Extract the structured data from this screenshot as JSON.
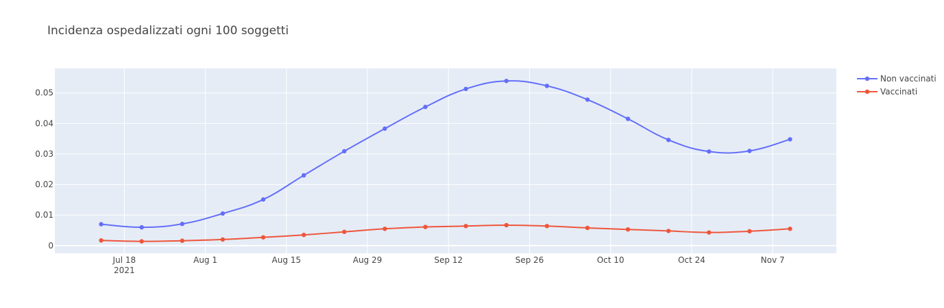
{
  "chart_data": {
    "type": "line",
    "title": "Incidenza ospedalizzati ogni 100 soggetti",
    "xlabel": "",
    "ylabel": "",
    "x": [
      "2021-07-14",
      "2021-07-21",
      "2021-07-28",
      "2021-08-04",
      "2021-08-11",
      "2021-08-18",
      "2021-08-25",
      "2021-09-01",
      "2021-09-08",
      "2021-09-15",
      "2021-09-22",
      "2021-09-29",
      "2021-10-06",
      "2021-10-13",
      "2021-10-20",
      "2021-10-27",
      "2021-11-03",
      "2021-11-10"
    ],
    "x_ticks": [
      "2021-07-18",
      "2021-08-01",
      "2021-08-15",
      "2021-08-29",
      "2021-09-12",
      "2021-09-26",
      "2021-10-10",
      "2021-10-24",
      "2021-11-07"
    ],
    "x_tick_labels": [
      "Jul 18",
      "Aug 1",
      "Aug 15",
      "Aug 29",
      "Sep 12",
      "Sep 26",
      "Oct 10",
      "Oct 24",
      "Nov 7"
    ],
    "x_tick_sublabel": "2021",
    "xlim": [
      "2021-07-06",
      "2021-11-18"
    ],
    "ylim": [
      -0.0025,
      0.058
    ],
    "y_ticks": [
      0,
      0.01,
      0.02,
      0.03,
      0.04,
      0.05
    ],
    "y_tick_labels": [
      "0",
      "0.01",
      "0.02",
      "0.03",
      "0.04",
      "0.05"
    ],
    "grid": true,
    "legend_position": "top-right",
    "series": [
      {
        "name": "Non vaccinati",
        "color": "#636efa",
        "values": [
          0.007,
          0.006,
          0.0071,
          0.0105,
          0.0151,
          0.023,
          0.0309,
          0.0383,
          0.0454,
          0.0513,
          0.0539,
          0.0523,
          0.0478,
          0.0415,
          0.0346,
          0.0308,
          0.031,
          0.0348
        ]
      },
      {
        "name": "Vaccinati",
        "color": "#ef553b",
        "values": [
          0.0017,
          0.0014,
          0.0016,
          0.002,
          0.0027,
          0.0035,
          0.0045,
          0.0055,
          0.0061,
          0.0064,
          0.0067,
          0.0064,
          0.0058,
          0.0053,
          0.0048,
          0.0043,
          0.0047,
          0.0055
        ]
      }
    ]
  }
}
